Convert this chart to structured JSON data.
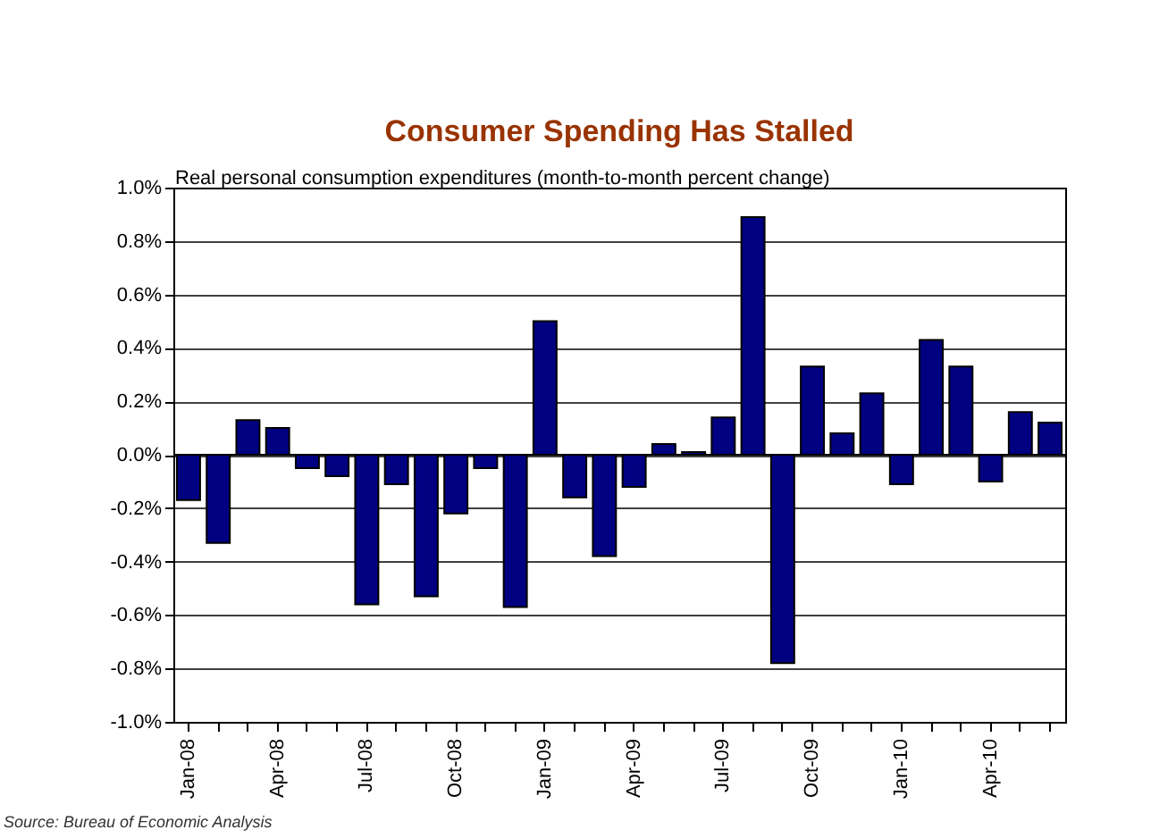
{
  "chart_data": {
    "type": "bar",
    "title": "Consumer Spending Has Stalled",
    "subtitle": "Real personal consumption expenditures (month-to-month percent change)",
    "annotations": [
      "Source: Bureau of Economic Analysis"
    ],
    "categories": [
      "Jan-08",
      null,
      null,
      "Apr-08",
      null,
      null,
      "Jul-08",
      null,
      null,
      "Oct-08",
      null,
      null,
      "Jan-09",
      null,
      null,
      "Apr-09",
      null,
      null,
      "Jul-09",
      null,
      null,
      "Oct-09",
      null,
      null,
      "Jan-10",
      null,
      null,
      "Apr-10",
      null,
      null
    ],
    "values": [
      -0.17,
      -0.33,
      0.13,
      0.1,
      -0.05,
      -0.08,
      -0.56,
      -0.11,
      -0.53,
      -0.22,
      -0.05,
      -0.57,
      0.5,
      -0.16,
      -0.38,
      -0.12,
      0.04,
      0.01,
      0.14,
      0.89,
      -0.78,
      0.33,
      0.08,
      0.23,
      -0.11,
      0.43,
      0.33,
      -0.1,
      0.16,
      0.12
    ],
    "color": "#000080",
    "ylim": [
      -1.0,
      1.0
    ],
    "yticks": [
      {
        "value": -1.0,
        "label": "-1.0%"
      },
      {
        "value": -0.8,
        "label": "-0.8%"
      },
      {
        "value": -0.6,
        "label": "-0.6%"
      },
      {
        "value": -0.4,
        "label": "-0.4%"
      },
      {
        "value": -0.2,
        "label": "-0.2%"
      },
      {
        "value": 0,
        "label": "0.0%"
      },
      {
        "value": 0.2,
        "label": "0.2%"
      },
      {
        "value": 0.4,
        "label": "0.4%"
      },
      {
        "value": 0.6,
        "label": "0.6%"
      },
      {
        "value": 0.8,
        "label": "0.8%"
      },
      {
        "value": 1.0,
        "label": "1.0%"
      }
    ],
    "grid": "y"
  }
}
